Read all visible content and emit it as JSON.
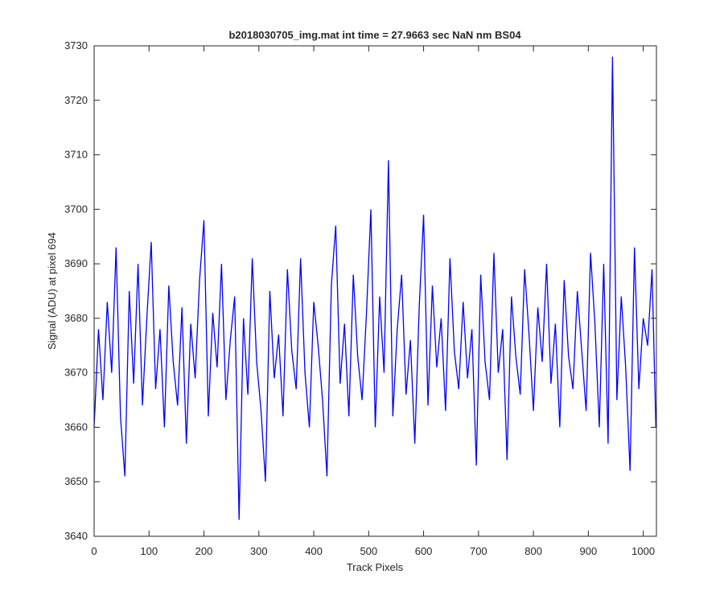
{
  "chart_data": {
    "type": "line",
    "title": "b2018030705_img.mat int time = 27.9663 sec  NaN nm BS04",
    "x_label": "Track Pixels",
    "y_label": "Signal (ADU) at pixel 694",
    "xlim": [
      0,
      1024
    ],
    "ylim": [
      3640,
      3730
    ],
    "xticks": [
      0,
      100,
      200,
      300,
      400,
      500,
      600,
      700,
      800,
      900,
      1000
    ],
    "yticks": [
      3640,
      3650,
      3660,
      3670,
      3680,
      3690,
      3700,
      3710,
      3720,
      3730
    ],
    "x": [
      0,
      8,
      16,
      24,
      32,
      40,
      48,
      56,
      64,
      72,
      80,
      88,
      96,
      104,
      112,
      120,
      128,
      136,
      144,
      152,
      160,
      168,
      176,
      184,
      192,
      200,
      208,
      216,
      224,
      232,
      240,
      248,
      256,
      264,
      272,
      280,
      288,
      296,
      304,
      312,
      320,
      328,
      336,
      344,
      352,
      360,
      368,
      376,
      384,
      392,
      400,
      408,
      416,
      424,
      432,
      440,
      448,
      456,
      464,
      472,
      480,
      488,
      496,
      504,
      512,
      520,
      528,
      536,
      544,
      552,
      560,
      568,
      576,
      584,
      592,
      600,
      608,
      616,
      624,
      632,
      640,
      648,
      656,
      664,
      672,
      680,
      688,
      696,
      704,
      712,
      720,
      728,
      736,
      744,
      752,
      760,
      768,
      776,
      784,
      792,
      800,
      808,
      816,
      824,
      832,
      840,
      848,
      856,
      864,
      872,
      880,
      888,
      896,
      904,
      912,
      920,
      928,
      936,
      944,
      952,
      960,
      968,
      976,
      984,
      992,
      1000,
      1008,
      1016,
      1023
    ],
    "series": [
      {
        "color": "#0000ff",
        "values": [
          3660,
          3678,
          3665,
          3683,
          3670,
          3693,
          3662,
          3651,
          3685,
          3668,
          3690,
          3664,
          3680,
          3694,
          3667,
          3678,
          3660,
          3686,
          3672,
          3664,
          3682,
          3657,
          3679,
          3669,
          3687,
          3698,
          3662,
          3681,
          3671,
          3690,
          3665,
          3676,
          3684,
          3643,
          3680,
          3666,
          3691,
          3672,
          3663,
          3650,
          3685,
          3669,
          3677,
          3662,
          3689,
          3674,
          3667,
          3691,
          3670,
          3660,
          3683,
          3675,
          3665,
          3651,
          3686,
          3697,
          3668,
          3679,
          3662,
          3688,
          3673,
          3665,
          3681,
          3700,
          3660,
          3684,
          3670,
          3709,
          3662,
          3678,
          3688,
          3666,
          3676,
          3657,
          3682,
          3699,
          3664,
          3686,
          3671,
          3680,
          3663,
          3691,
          3674,
          3667,
          3683,
          3669,
          3678,
          3653,
          3688,
          3672,
          3665,
          3692,
          3670,
          3678,
          3654,
          3684,
          3673,
          3666,
          3689,
          3677,
          3663,
          3682,
          3672,
          3690,
          3668,
          3679,
          3660,
          3687,
          3673,
          3667,
          3685,
          3674,
          3663,
          3692,
          3679,
          3660,
          3690,
          3657,
          3728,
          3665,
          3684,
          3671,
          3652,
          3693,
          3667,
          3680,
          3675,
          3689,
          3660
        ]
      }
    ]
  }
}
